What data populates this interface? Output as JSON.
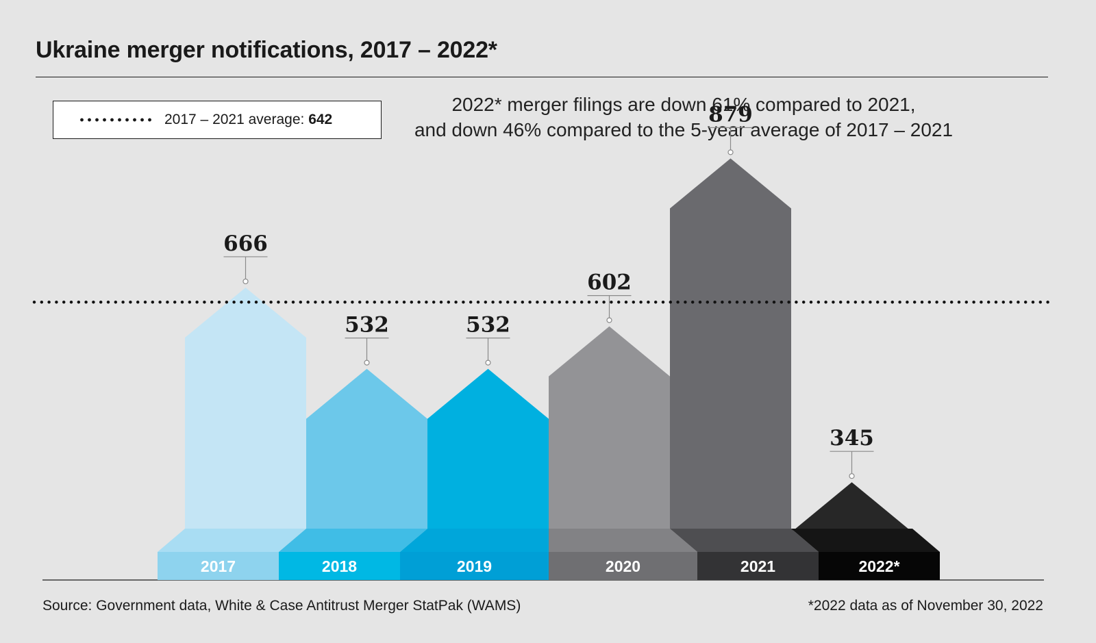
{
  "title": "Ukraine merger notifications, 2017 – 2022*",
  "legend": {
    "label": "2017 – 2021 average: ",
    "value": "642"
  },
  "annotation": {
    "line1": "2022* merger filings are down 61% compared to 2021,",
    "line2": "and down 46% compared to the 5-year average of 2017 – 2021"
  },
  "chart_data": {
    "type": "bar",
    "title": "Ukraine merger notifications, 2017 – 2022*",
    "xlabel": "",
    "ylabel": "",
    "categories": [
      "2017",
      "2018",
      "2019",
      "2020",
      "2021",
      "2022*"
    ],
    "values": [
      666,
      532,
      532,
      602,
      879,
      345
    ],
    "value_labels": [
      "666",
      "532",
      "532",
      "602",
      "879",
      "345"
    ],
    "reference_line": {
      "value": 642,
      "label": "2017 – 2021 average",
      "style": "dotted"
    },
    "ylim": [
      0,
      900
    ],
    "grid": false,
    "legend_position": "top-left",
    "colors": {
      "bars": [
        "#c4e5f5",
        "#6cc8ea",
        "#00b0e0",
        "#939396",
        "#6a6a6e",
        "#272727"
      ],
      "bases": [
        "#8ed3ee",
        "#00b8e4",
        "#009fd6",
        "#6f6f72",
        "#333335",
        "#060606"
      ],
      "slopes": [
        "#a9ddf3",
        "#40bde6",
        "#00a6da",
        "#828285",
        "#4e4e51",
        "#151515"
      ],
      "reference_line": "#111111",
      "label_text": "#ffffff"
    }
  },
  "footer": {
    "source": "Source: Government data, White & Case Antitrust Merger StatPak (WAMS)",
    "note": "*2022 data as of November 30, 2022"
  }
}
